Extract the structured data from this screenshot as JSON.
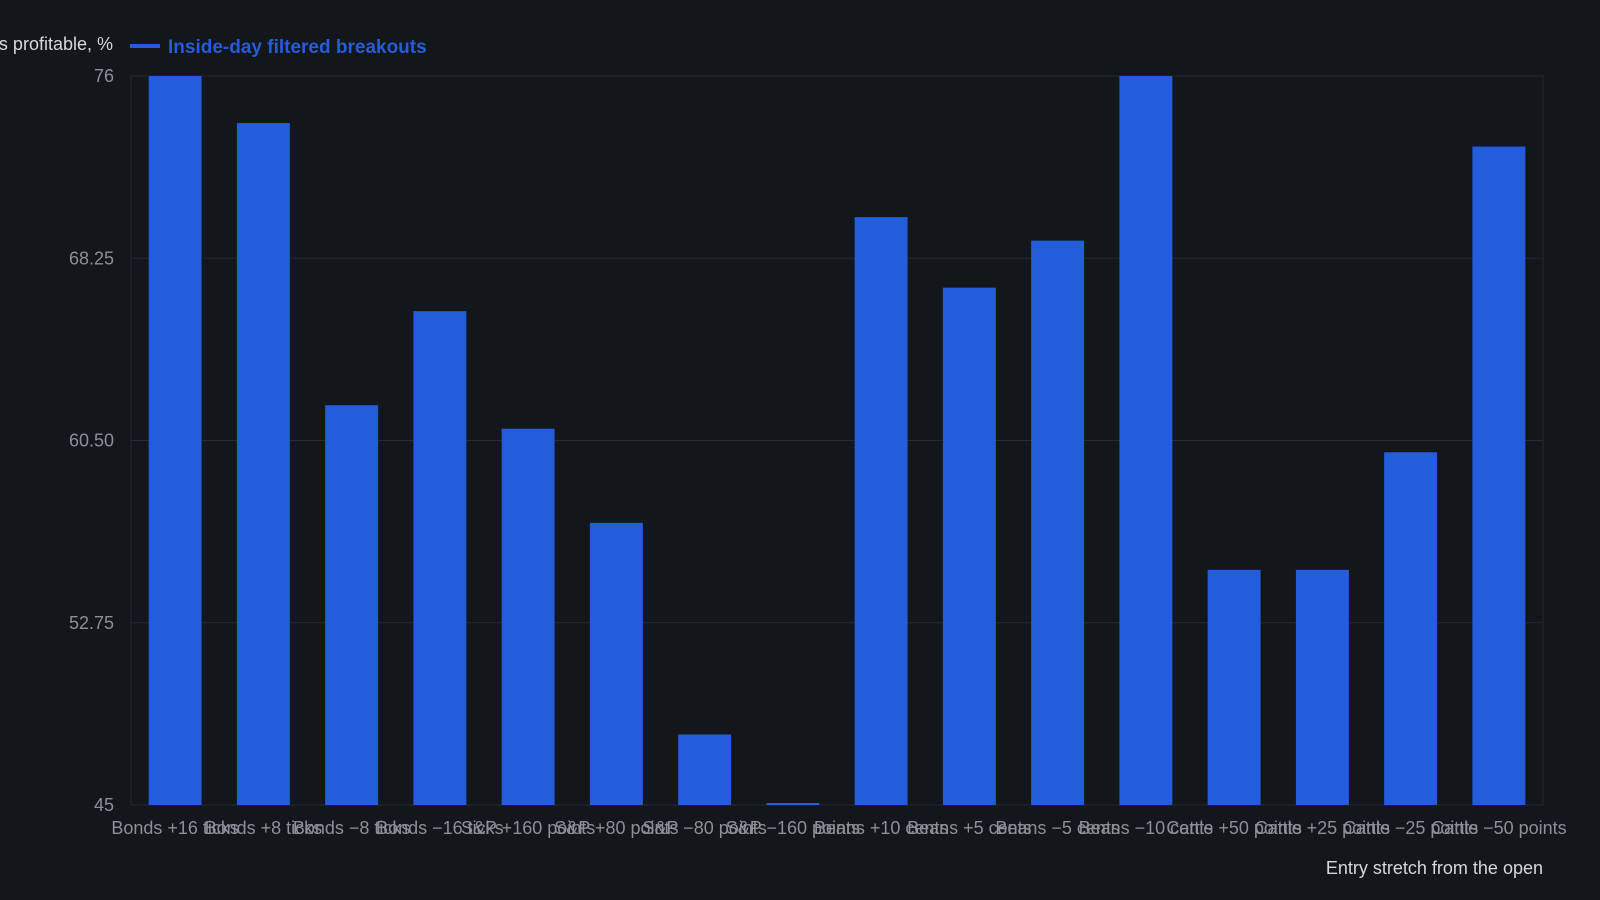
{
  "chart_data": {
    "type": "bar",
    "title": "",
    "xlabel": "Entry stretch from the open",
    "ylabel": "Trades profitable, %",
    "ylim": [
      45,
      76
    ],
    "yticks": [
      "45",
      "52.75",
      "60.50",
      "68.25",
      "76"
    ],
    "grid": true,
    "legend_position": "top-left",
    "categories": [
      "Bonds +16 ticks",
      "Bonds +8 ticks",
      "Bonds −8 ticks",
      "Bonds −16 ticks",
      "S&P +160 points",
      "S&P +80 points",
      "S&P −80 points",
      "S&P −160 points",
      "Beans +10 cents",
      "Beans +5 cents",
      "Beans −5 cents",
      "Beans −10 cents",
      "Cattle +50 points",
      "Cattle +25 points",
      "Cattle −25 points",
      "Cattle −50 points"
    ],
    "series": [
      {
        "name": "Inside-day filtered breakouts",
        "color": "#245ddb",
        "values": [
          76,
          74,
          62,
          66,
          61,
          57,
          48,
          45,
          70,
          67,
          69,
          76,
          55,
          55,
          60,
          73
        ]
      }
    ]
  },
  "colors": {
    "background": "#13161b",
    "grid": "#262a31",
    "bar": "#245ddb",
    "tick_text": "#8a8f98",
    "title_text": "#d4d7dc"
  }
}
